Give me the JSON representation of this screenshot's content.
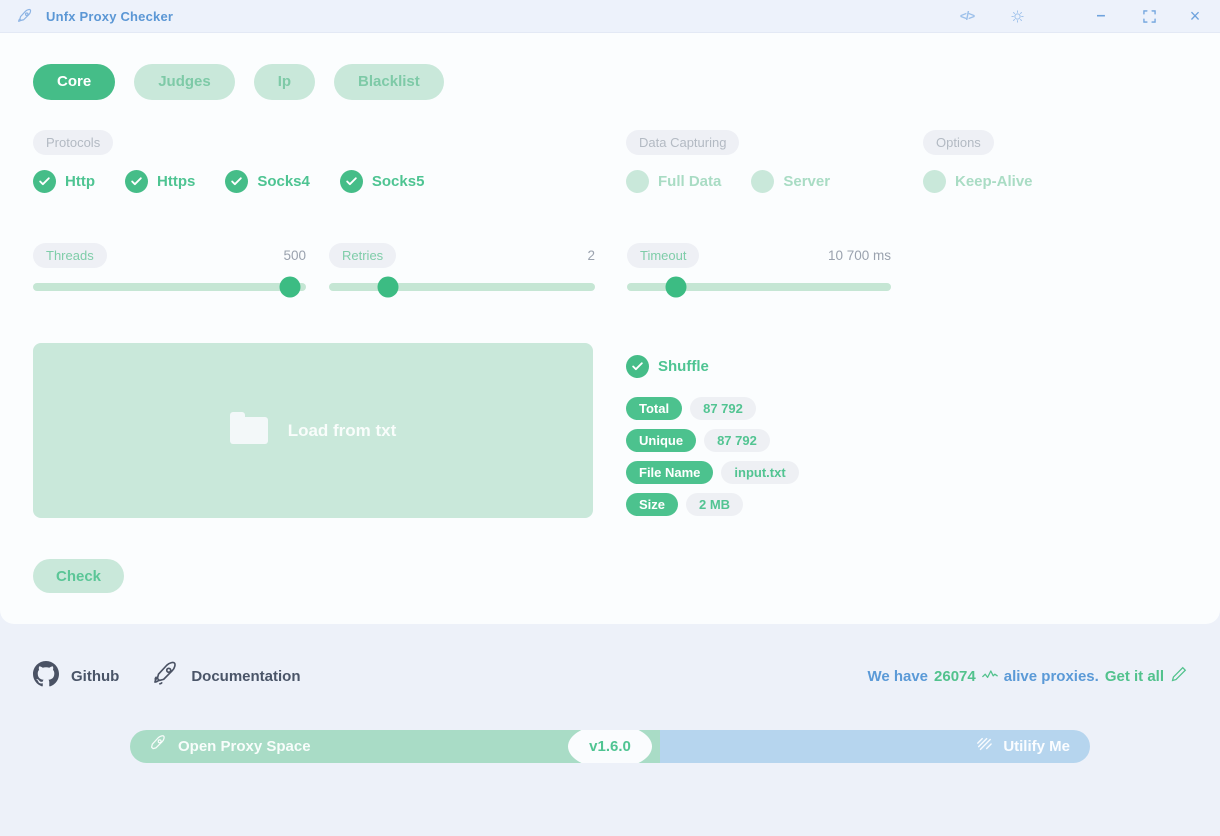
{
  "titlebar": {
    "title": "Unfx Proxy Checker",
    "minimize_glyph": "–",
    "close_glyph": "×",
    "code_glyph": "</>",
    "icons": [
      "rocket-icon",
      "code-icon",
      "settings-icon",
      "minimize-icon",
      "maximize-icon",
      "close-icon"
    ]
  },
  "tabs": [
    {
      "label": "Core",
      "active": true
    },
    {
      "label": "Judges",
      "active": false
    },
    {
      "label": "Ip",
      "active": false
    },
    {
      "label": "Blacklist",
      "active": false
    }
  ],
  "sections": {
    "protocols": {
      "label": "Protocols",
      "items": [
        {
          "label": "Http",
          "checked": true
        },
        {
          "label": "Https",
          "checked": true
        },
        {
          "label": "Socks4",
          "checked": true
        },
        {
          "label": "Socks5",
          "checked": true
        }
      ]
    },
    "data_capturing": {
      "label": "Data Capturing",
      "items": [
        {
          "label": "Full Data",
          "checked": false
        },
        {
          "label": "Server",
          "checked": false
        }
      ]
    },
    "options": {
      "label": "Options",
      "items": [
        {
          "label": "Keep-Alive",
          "checked": false
        }
      ]
    }
  },
  "sliders": [
    {
      "label": "Threads",
      "value": "500",
      "percent": 94
    },
    {
      "label": "Retries",
      "value": "2",
      "percent": 22
    },
    {
      "label": "Timeout",
      "value": "10 700 ms",
      "percent": 18.5
    }
  ],
  "file_drop": {
    "label": "Load from txt",
    "icon": "folder-icon"
  },
  "shuffle": {
    "label": "Shuffle",
    "checked": true
  },
  "stats": [
    {
      "label": "Total",
      "value": "87 792"
    },
    {
      "label": "Unique",
      "value": "87 792"
    },
    {
      "label": "File Name",
      "value": "input.txt"
    },
    {
      "label": "Size",
      "value": "2 MB"
    }
  ],
  "check_button_label": "Check",
  "footer": {
    "links": [
      {
        "label": "Github",
        "icon": "github-icon"
      },
      {
        "label": "Documentation",
        "icon": "rocket-icon"
      }
    ],
    "promo": {
      "prefix": "We have",
      "count": "26074",
      "count_icon": "pulse-icon",
      "middle": "alive proxies.",
      "cta": "Get it all",
      "cta_icon": "pencil-icon"
    },
    "bar": {
      "left_label": "Open Proxy Space",
      "left_icon": "rocket-icon",
      "version": "v1.6.0",
      "right_label": "Utilify Me",
      "right_icon": "hatch-icon"
    }
  },
  "colors": {
    "accent_green": "#45bd88",
    "light_green": "#c9e8da",
    "accent_blue": "#5b9ad7",
    "bar_green": "#a9dcc6",
    "bar_blue": "#b6d5ee"
  }
}
